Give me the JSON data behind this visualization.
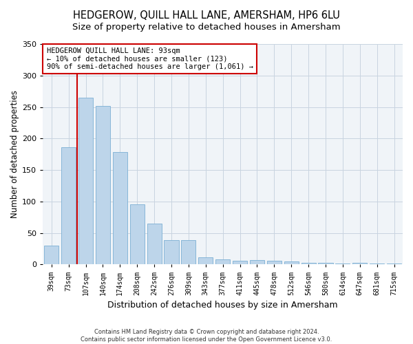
{
  "title": "HEDGEROW, QUILL HALL LANE, AMERSHAM, HP6 6LU",
  "subtitle": "Size of property relative to detached houses in Amersham",
  "xlabel": "Distribution of detached houses by size in Amersham",
  "ylabel": "Number of detached properties",
  "categories": [
    "39sqm",
    "73sqm",
    "107sqm",
    "140sqm",
    "174sqm",
    "208sqm",
    "242sqm",
    "276sqm",
    "309sqm",
    "343sqm",
    "377sqm",
    "411sqm",
    "445sqm",
    "478sqm",
    "512sqm",
    "546sqm",
    "580sqm",
    "614sqm",
    "647sqm",
    "681sqm",
    "715sqm"
  ],
  "values": [
    30,
    186,
    265,
    252,
    178,
    95,
    65,
    39,
    39,
    11,
    8,
    6,
    7,
    6,
    5,
    3,
    3,
    1,
    3,
    1,
    2
  ],
  "bar_color": "#bdd5ea",
  "bar_edge_color": "#7aafd4",
  "vline_color": "#cc0000",
  "vline_pos": 1.5,
  "annotation_text": "HEDGEROW QUILL HALL LANE: 93sqm\n← 10% of detached houses are smaller (123)\n90% of semi-detached houses are larger (1,061) →",
  "annotation_box_facecolor": "#ffffff",
  "annotation_box_edgecolor": "#cc0000",
  "ylim": [
    0,
    350
  ],
  "yticks": [
    0,
    50,
    100,
    150,
    200,
    250,
    300,
    350
  ],
  "title_fontsize": 10.5,
  "subtitle_fontsize": 9.5,
  "xlabel_fontsize": 9,
  "ylabel_fontsize": 8.5,
  "tick_fontsize": 8,
  "xtick_fontsize": 7,
  "footer_line1": "Contains HM Land Registry data © Crown copyright and database right 2024.",
  "footer_line2": "Contains public sector information licensed under the Open Government Licence v3.0.",
  "bg_color": "#ffffff",
  "plot_bg_color": "#f0f4f8",
  "grid_color": "#c8d4e0"
}
